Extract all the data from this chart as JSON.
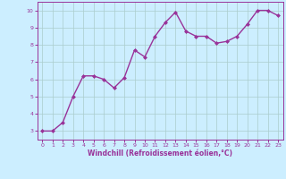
{
  "x": [
    0,
    1,
    2,
    3,
    4,
    5,
    6,
    7,
    8,
    9,
    10,
    11,
    12,
    13,
    14,
    15,
    16,
    17,
    18,
    19,
    20,
    21,
    22,
    23
  ],
  "y": [
    3.0,
    3.0,
    3.5,
    5.0,
    6.2,
    6.2,
    6.0,
    5.5,
    6.1,
    7.7,
    7.3,
    8.5,
    9.3,
    9.9,
    8.8,
    8.5,
    8.5,
    8.1,
    8.2,
    8.5,
    9.2,
    10.0,
    10.0,
    9.7
  ],
  "line_color": "#993399",
  "marker": "D",
  "marker_size": 2.0,
  "line_width": 1.0,
  "bg_color": "#cceeff",
  "grid_color": "#aacccc",
  "xlabel": "Windchill (Refroidissement éolien,°C)",
  "xlabel_color": "#993399",
  "tick_color": "#993399",
  "xlim": [
    -0.5,
    23.5
  ],
  "ylim": [
    2.5,
    10.5
  ],
  "yticks": [
    3,
    4,
    5,
    6,
    7,
    8,
    9,
    10
  ],
  "xticks": [
    0,
    1,
    2,
    3,
    4,
    5,
    6,
    7,
    8,
    9,
    10,
    11,
    12,
    13,
    14,
    15,
    16,
    17,
    18,
    19,
    20,
    21,
    22,
    23
  ]
}
